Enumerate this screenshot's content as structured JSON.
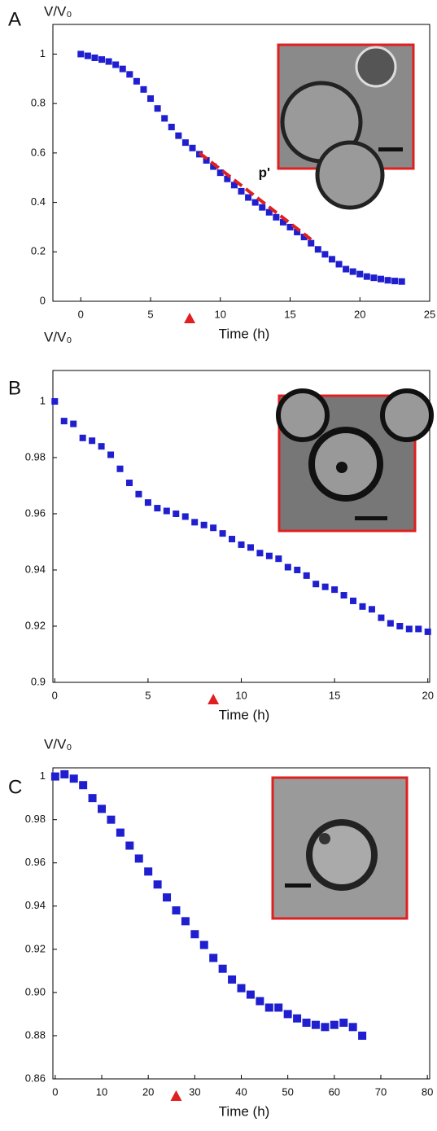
{
  "chart_data": [
    {
      "type": "scatter",
      "panel": "A",
      "ylabel": "V/V₀",
      "xlabel": "Time (h)",
      "color": "#1f1fd0",
      "xlim": [
        -2,
        25
      ],
      "ylim": [
        0,
        1.12
      ],
      "xticks": [
        0,
        5,
        10,
        15,
        20,
        25
      ],
      "yticks": [
        0,
        0.2,
        0.4,
        0.6,
        0.8,
        1
      ],
      "x": [
        0,
        0.5,
        1,
        1.5,
        2,
        2.5,
        3,
        3.5,
        4,
        4.5,
        5,
        5.5,
        6,
        6.5,
        7,
        7.5,
        8,
        8.5,
        9,
        9.5,
        10,
        10.5,
        11,
        11.5,
        12,
        12.5,
        13,
        13.5,
        14,
        14.5,
        15,
        15.5,
        16,
        16.5,
        17,
        17.5,
        18,
        18.5,
        19,
        19.5,
        20,
        20.5,
        21,
        21.5,
        22,
        22.5,
        23
      ],
      "values": [
        1,
        0.993,
        0.985,
        0.978,
        0.97,
        0.957,
        0.94,
        0.918,
        0.89,
        0.857,
        0.82,
        0.78,
        0.74,
        0.705,
        0.67,
        0.642,
        0.62,
        0.595,
        0.57,
        0.545,
        0.52,
        0.495,
        0.47,
        0.445,
        0.42,
        0.4,
        0.38,
        0.36,
        0.34,
        0.32,
        0.3,
        0.28,
        0.26,
        0.235,
        0.21,
        0.19,
        0.17,
        0.15,
        0.13,
        0.12,
        0.11,
        0.1,
        0.095,
        0.09,
        0.085,
        0.082,
        0.08
      ],
      "marker_x": 7.8,
      "fit_line": {
        "label": "p'",
        "color": "#e02020",
        "x": [
          8.5,
          16.5
        ],
        "values": [
          0.6,
          0.25
        ]
      }
    },
    {
      "type": "scatter",
      "panel": "B",
      "ylabel": "V/V₀",
      "xlabel": "Time (h)",
      "color": "#1f1fd0",
      "xlim": [
        -0.1,
        20.1
      ],
      "ylim": [
        0.9,
        1.011
      ],
      "xticks": [
        0,
        5,
        10,
        15,
        20
      ],
      "yticks": [
        0.9,
        0.92,
        0.94,
        0.96,
        0.98,
        1
      ],
      "x": [
        0,
        0.5,
        1,
        1.5,
        2,
        2.5,
        3,
        3.5,
        4,
        4.5,
        5,
        5.5,
        6,
        6.5,
        7,
        7.5,
        8,
        8.5,
        9,
        9.5,
        10,
        10.5,
        11,
        11.5,
        12,
        12.5,
        13,
        13.5,
        14,
        14.5,
        15,
        15.5,
        16,
        16.5,
        17,
        17.5,
        18,
        18.5,
        19,
        19.5,
        20
      ],
      "values": [
        1,
        0.993,
        0.992,
        0.987,
        0.986,
        0.984,
        0.981,
        0.976,
        0.971,
        0.967,
        0.964,
        0.962,
        0.961,
        0.96,
        0.959,
        0.957,
        0.956,
        0.955,
        0.953,
        0.951,
        0.949,
        0.948,
        0.946,
        0.945,
        0.944,
        0.941,
        0.94,
        0.938,
        0.935,
        0.934,
        0.933,
        0.931,
        0.929,
        0.927,
        0.926,
        0.923,
        0.921,
        0.92,
        0.919,
        0.919,
        0.918
      ],
      "marker_x": 8.5
    },
    {
      "type": "scatter",
      "panel": "C",
      "ylabel": "V/V₀",
      "xlabel": "Time (h)",
      "color": "#1f1fd0",
      "xlim": [
        -0.5,
        80.5
      ],
      "ylim": [
        0.86,
        1.004
      ],
      "xticks": [
        0,
        10,
        20,
        30,
        40,
        50,
        60,
        70,
        80
      ],
      "yticks": [
        0.86,
        0.88,
        {
          "value": 0.9,
          "label": "0.90"
        },
        0.92,
        0.94,
        0.96,
        0.98,
        1
      ],
      "x": [
        0,
        2,
        4,
        6,
        8,
        10,
        12,
        14,
        16,
        18,
        20,
        22,
        24,
        26,
        28,
        30,
        32,
        34,
        36,
        38,
        40,
        42,
        44,
        46,
        48,
        50,
        52,
        54,
        56,
        58,
        60,
        62,
        64,
        66
      ],
      "values": [
        1,
        1.001,
        0.999,
        0.996,
        0.99,
        0.985,
        0.98,
        0.974,
        0.968,
        0.962,
        0.956,
        0.95,
        0.944,
        0.938,
        0.933,
        0.927,
        0.922,
        0.916,
        0.911,
        0.906,
        0.902,
        0.899,
        0.896,
        0.893,
        0.893,
        0.89,
        0.888,
        0.886,
        0.885,
        0.884,
        0.885,
        0.886,
        0.884,
        0.88
      ],
      "marker_x": 26
    }
  ]
}
